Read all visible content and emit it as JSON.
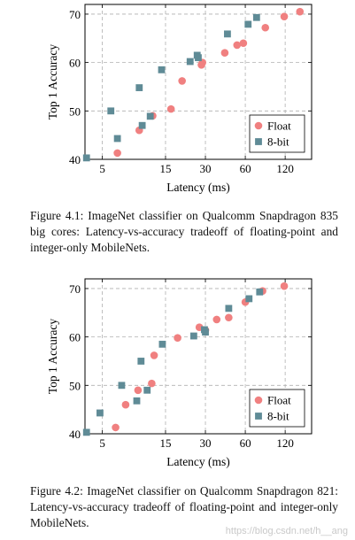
{
  "chart_data": [
    {
      "type": "scatter",
      "title": "",
      "xlabel": "Latency (ms)",
      "ylabel": "Top 1 Accuracy",
      "x_scale": "log",
      "xlim": [
        3.7,
        190
      ],
      "ylim": [
        40,
        72
      ],
      "xticks": [
        5,
        15,
        30,
        60,
        120
      ],
      "yticks": [
        40,
        50,
        60,
        70
      ],
      "grid": true,
      "legend_position": "bottom-right",
      "series": [
        {
          "name": "Float",
          "marker": "circle",
          "color": "#f08080",
          "points": [
            [
              6.5,
              41.3
            ],
            [
              9.5,
              46.0
            ],
            [
              12.0,
              49.0
            ],
            [
              16.5,
              50.4
            ],
            [
              20.0,
              56.2
            ],
            [
              28.0,
              59.5
            ],
            [
              28.5,
              60.0
            ],
            [
              42.0,
              62.0
            ],
            [
              52.0,
              63.6
            ],
            [
              58.0,
              64.0
            ],
            [
              85.0,
              67.2
            ],
            [
              118.0,
              69.5
            ],
            [
              155.0,
              70.5
            ]
          ]
        },
        {
          "name": "8-bit",
          "marker": "square",
          "color": "#5f8b96",
          "points": [
            [
              3.8,
              40.3
            ],
            [
              5.8,
              50.0
            ],
            [
              6.5,
              44.3
            ],
            [
              9.5,
              54.8
            ],
            [
              10.0,
              47.0
            ],
            [
              11.5,
              48.9
            ],
            [
              14.0,
              58.5
            ],
            [
              23.0,
              60.2
            ],
            [
              26.0,
              61.5
            ],
            [
              26.5,
              61.0
            ],
            [
              44.0,
              65.9
            ],
            [
              63.0,
              67.9
            ],
            [
              73.0,
              69.3
            ]
          ]
        }
      ]
    },
    {
      "type": "scatter",
      "title": "",
      "xlabel": "Latency (ms)",
      "ylabel": "Top 1 Accuracy",
      "x_scale": "log",
      "xlim": [
        3.7,
        190
      ],
      "ylim": [
        40,
        72
      ],
      "xticks": [
        5,
        15,
        30,
        60,
        120
      ],
      "yticks": [
        40,
        50,
        60,
        70
      ],
      "grid": true,
      "legend_position": "bottom-right",
      "series": [
        {
          "name": "Float",
          "marker": "circle",
          "color": "#f08080",
          "points": [
            [
              6.3,
              41.3
            ],
            [
              7.5,
              46.0
            ],
            [
              9.3,
              49.0
            ],
            [
              11.8,
              50.4
            ],
            [
              12.3,
              56.2
            ],
            [
              18.5,
              59.8
            ],
            [
              27.0,
              62.0
            ],
            [
              30.0,
              61.4
            ],
            [
              36.5,
              63.6
            ],
            [
              45.0,
              64.0
            ],
            [
              60.0,
              67.2
            ],
            [
              81.0,
              69.5
            ],
            [
              118.0,
              70.5
            ]
          ]
        },
        {
          "name": "8-bit",
          "marker": "square",
          "color": "#5f8b96",
          "points": [
            [
              3.8,
              40.3
            ],
            [
              4.8,
              44.3
            ],
            [
              7.0,
              50.0
            ],
            [
              9.1,
              46.8
            ],
            [
              9.8,
              55.0
            ],
            [
              10.9,
              49.0
            ],
            [
              14.2,
              58.5
            ],
            [
              24.5,
              60.2
            ],
            [
              29.5,
              61.5
            ],
            [
              30.0,
              61.0
            ],
            [
              45.0,
              65.9
            ],
            [
              64.0,
              67.9
            ],
            [
              77.0,
              69.3
            ]
          ]
        }
      ]
    }
  ],
  "captions": [
    "Figure 4.1: ImageNet classifier on Qualcomm Snapdragon 835 big cores: Latency-vs-accuracy tradeoff of floating-point and integer-only MobileNets.",
    "Figure 4.2: ImageNet classifier on Qualcomm Snapdragon 821: Latency-vs-accuracy tradeoff of floating-point and integer-only MobileNets."
  ],
  "watermark": "https://blog.csdn.net/h__ang"
}
